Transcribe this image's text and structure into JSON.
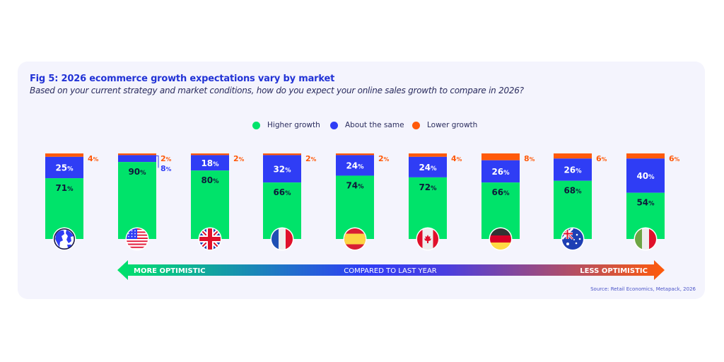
{
  "header": {
    "title": "Fig 5: 2026 ecommerce growth expectations vary by market",
    "subtitle": "Based on your current strategy and market conditions, how do you expect your online sales growth to compare in 2026?"
  },
  "colors": {
    "higher": "#00e36a",
    "same": "#2f3df5",
    "lower": "#ff5a0a",
    "title": "#2233d6"
  },
  "legend": [
    {
      "label": "Higher growth",
      "color": "#00e36a"
    },
    {
      "label": "About the same",
      "color": "#2f3df5"
    },
    {
      "label": "Lower growth",
      "color": "#ff5a0a"
    }
  ],
  "chart_data": {
    "type": "bar",
    "stacked": true,
    "title": "Fig 5: 2026 ecommerce growth expectations vary by market",
    "categories": [
      "Global",
      "USA",
      "UK",
      "France",
      "Spain",
      "Canada",
      "Germany",
      "Australia",
      "Italy"
    ],
    "category_icons": [
      "globe-icon",
      "usa-flag-icon",
      "uk-flag-icon",
      "france-flag-icon",
      "spain-flag-icon",
      "canada-flag-icon",
      "germany-flag-icon",
      "australia-flag-icon",
      "italy-flag-icon"
    ],
    "series": [
      {
        "name": "Higher growth",
        "values": [
          71,
          90,
          80,
          66,
          74,
          72,
          66,
          68,
          54
        ]
      },
      {
        "name": "About the same",
        "values": [
          25,
          8,
          18,
          32,
          24,
          24,
          26,
          26,
          40
        ]
      },
      {
        "name": "Lower growth",
        "values": [
          4,
          2,
          2,
          2,
          2,
          4,
          8,
          6,
          6
        ]
      }
    ],
    "value_suffix": "%",
    "ylim": [
      0,
      100
    ],
    "legend_position": "top-center",
    "grid": false
  },
  "axis": {
    "left_label": "MORE OPTIMISTIC",
    "center_label": "COMPARED TO LAST YEAR",
    "right_label": "LESS OPTIMISTIC"
  },
  "source": "Source: Retail Economics, Metapack, 2026"
}
